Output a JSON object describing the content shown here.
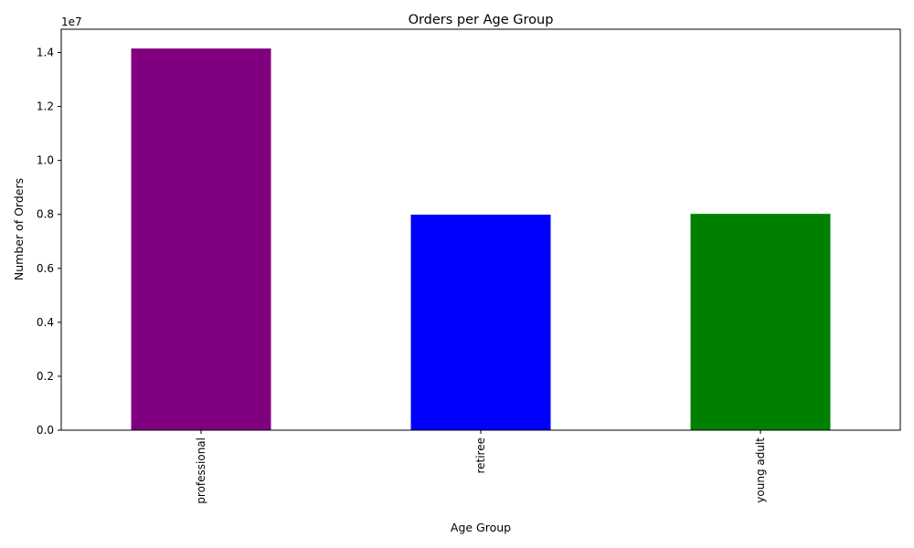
{
  "chart_data": {
    "type": "bar",
    "title": "Orders per Age Group",
    "xlabel": "Age Group",
    "ylabel": "Number of Orders",
    "y_offset_label": "1e7",
    "categories": [
      "professional",
      "retiree",
      "young adult"
    ],
    "values": [
      14150000,
      7990000,
      8020000
    ],
    "colors": [
      "#800080",
      "#0000ff",
      "#008000"
    ],
    "ylim": [
      0,
      14865000
    ],
    "yticks": [
      0,
      2000000,
      4000000,
      6000000,
      8000000,
      10000000,
      12000000,
      14000000
    ],
    "ytick_labels": [
      "0.0",
      "0.2",
      "0.4",
      "0.6",
      "0.8",
      "1.0",
      "1.2",
      "1.4"
    ],
    "x_tick_rotation": "vertical",
    "grid": false,
    "legend": "none"
  }
}
